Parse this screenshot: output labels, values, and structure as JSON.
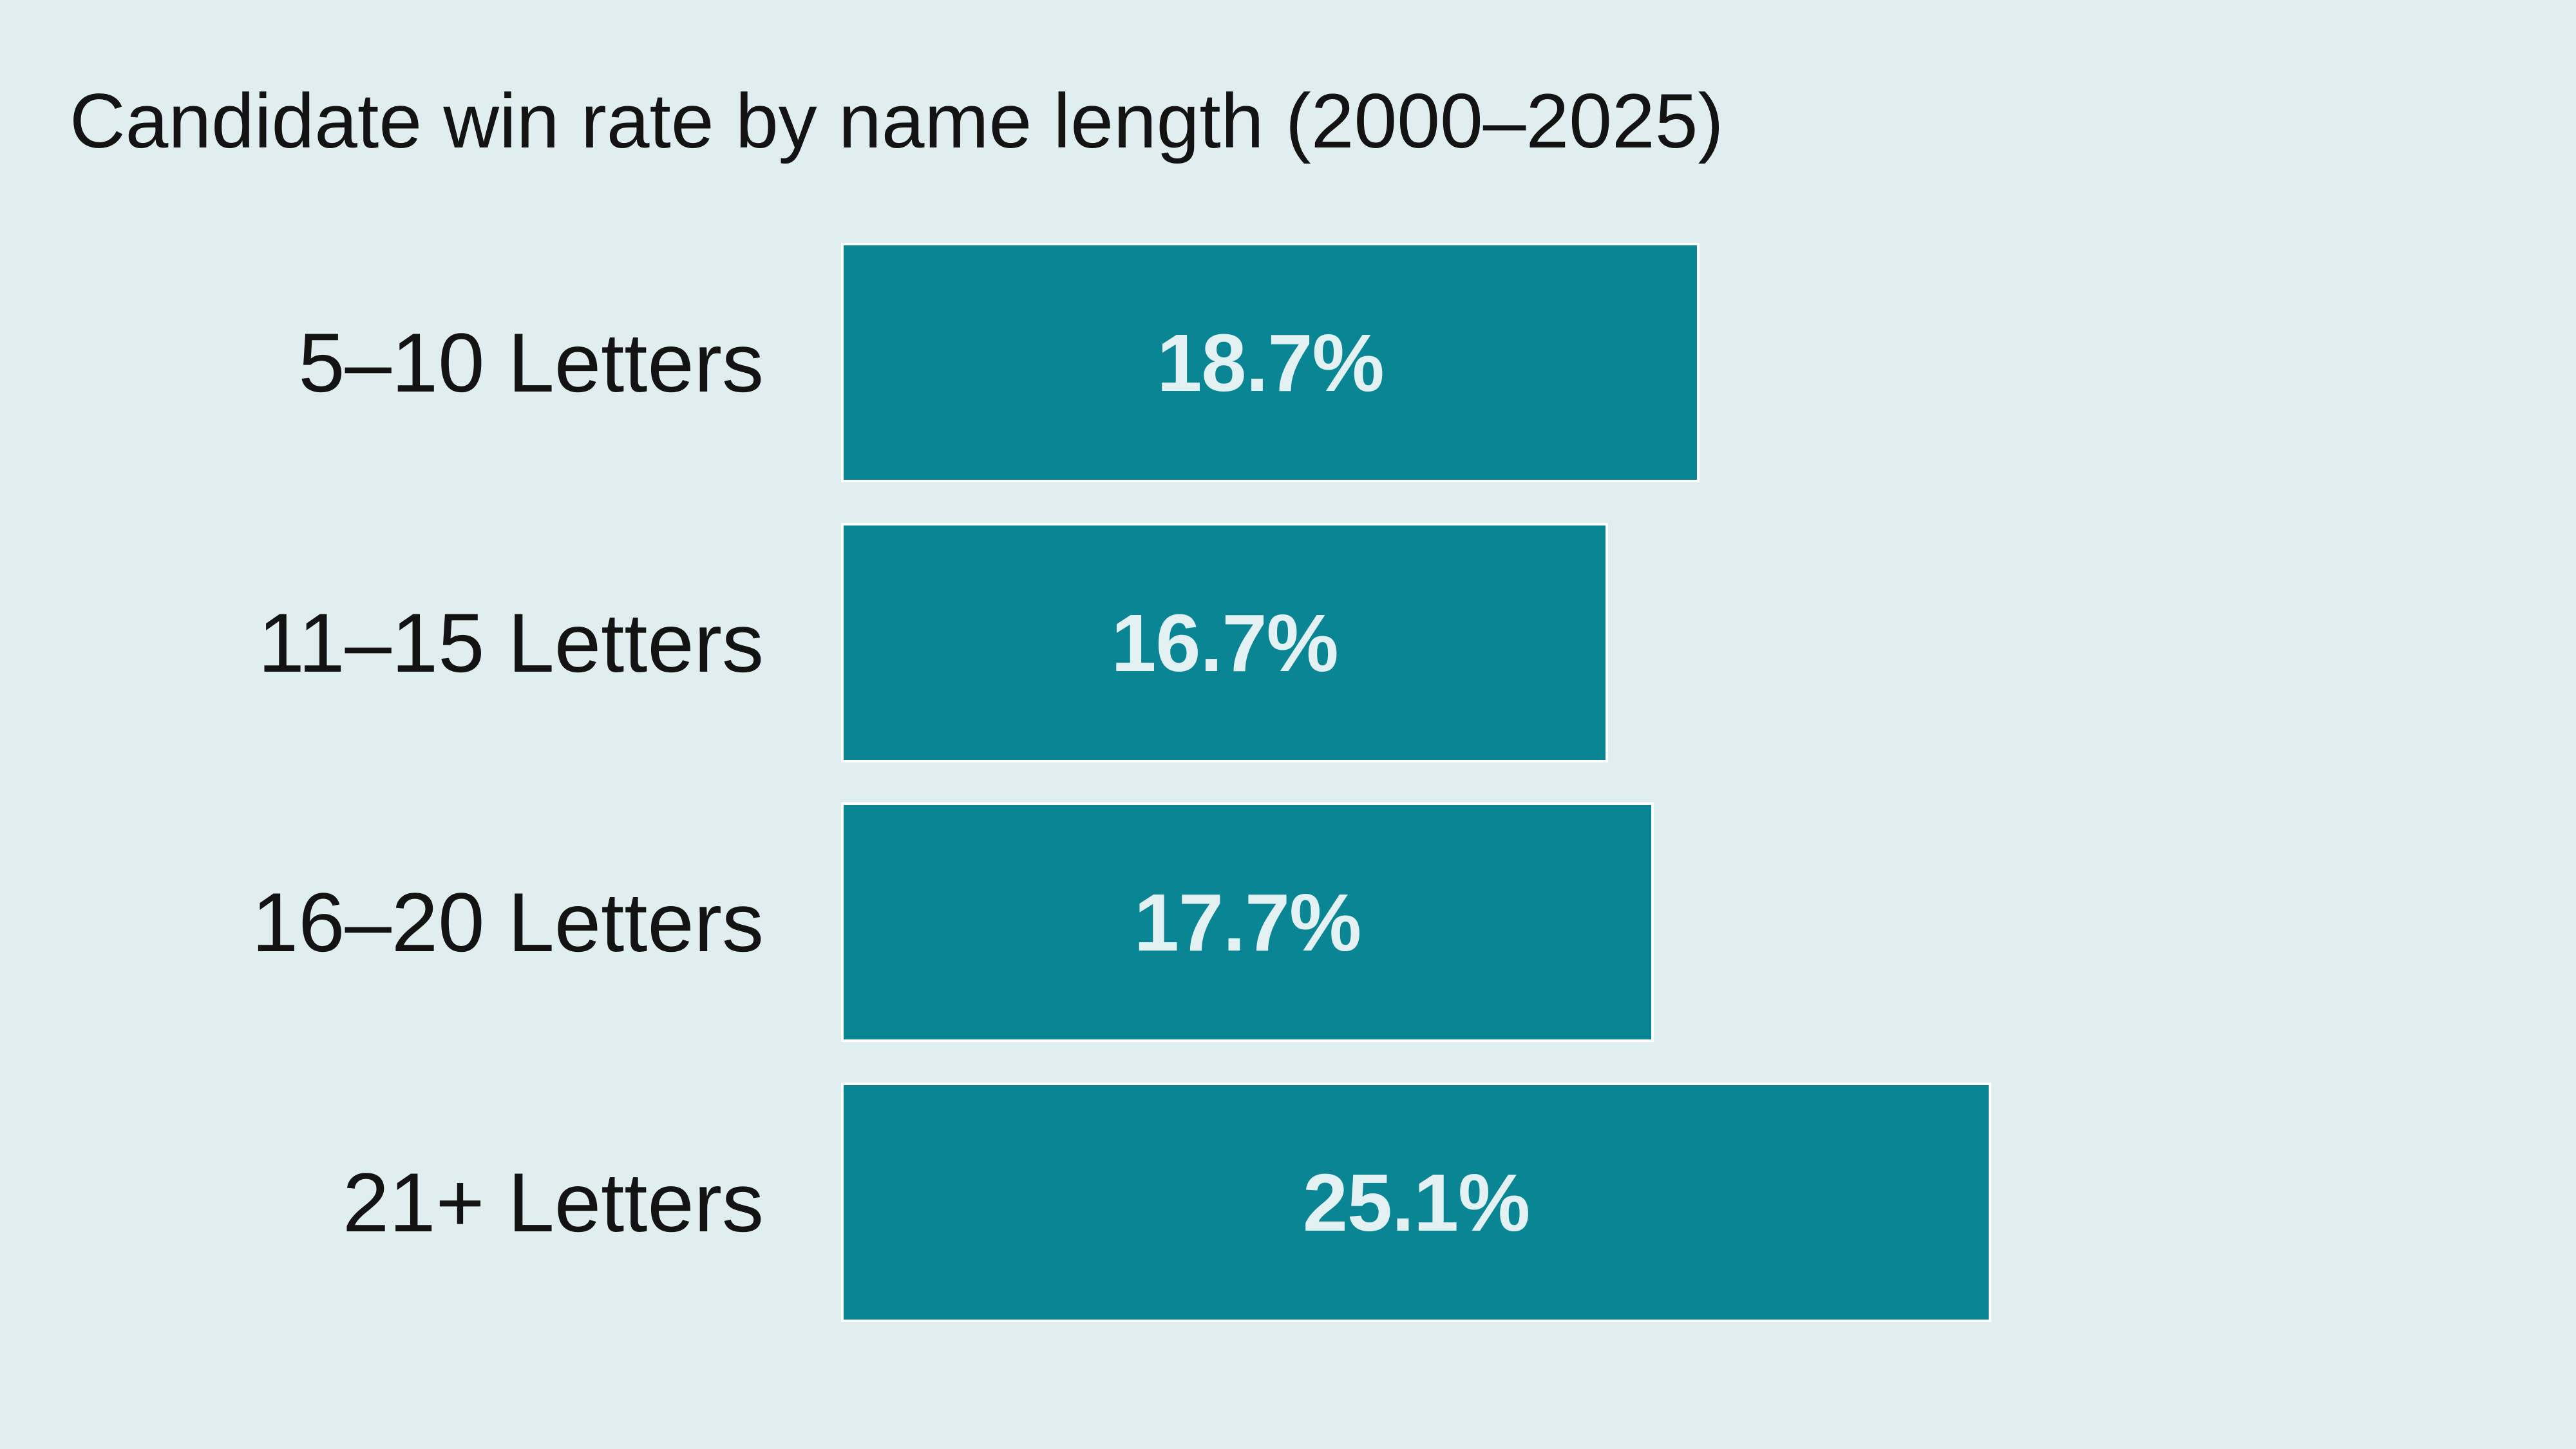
{
  "title": "Candidate win rate by name length (2000–2025)",
  "colors": {
    "background": "#e1eef0",
    "bar": "#0a8594",
    "bar_outline": "#ffffff",
    "value_text": "#e3f1f2",
    "label_text": "#131313"
  },
  "chart_data": {
    "type": "bar",
    "orientation": "horizontal",
    "title": "Candidate win rate by name length (2000–2025)",
    "categories": [
      "5–10 Letters",
      "11–15 Letters",
      "16–20 Letters",
      "21+ Letters"
    ],
    "values": [
      18.7,
      16.7,
      17.7,
      25.1
    ],
    "value_labels": [
      "18.7%",
      "16.7%",
      "17.7%",
      "25.1%"
    ],
    "unit": "%",
    "xlabel": "",
    "ylabel": "",
    "axes_shown": false,
    "grid": false,
    "legend": false,
    "value_label_position": "inside-center",
    "category_label_position": "left-of-bar"
  }
}
